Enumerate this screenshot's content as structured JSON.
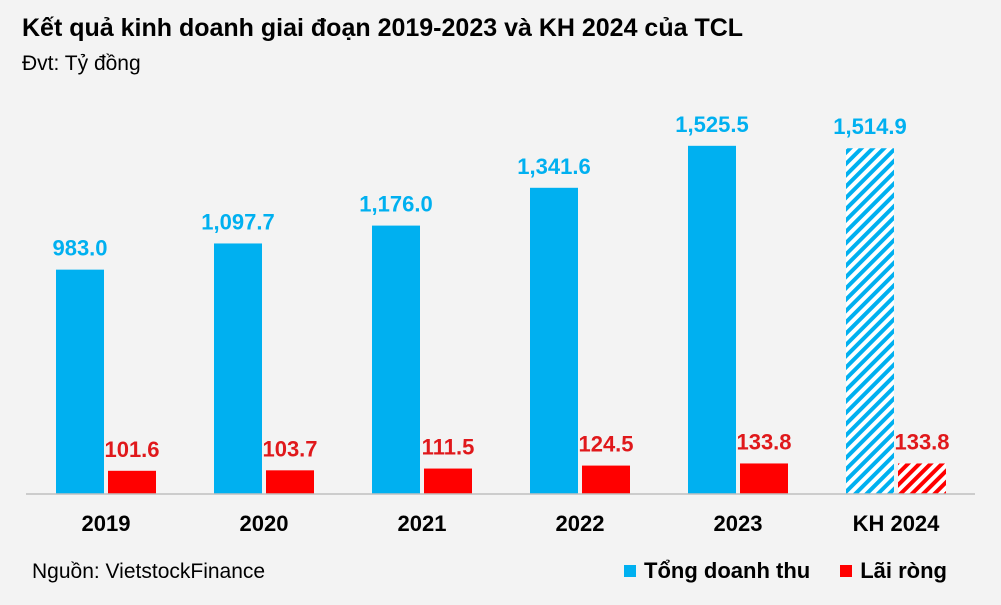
{
  "header": {
    "title": "Kết quả kinh doanh giai đoạn 2019-2023 và KH 2024 của TCL",
    "subtitle": "Đvt: Tỷ đồng"
  },
  "footer": {
    "source": "Nguồn: VietstockFinance"
  },
  "colors": {
    "revenue": "#00b0f0",
    "profit": "#ff0000",
    "revenue_label": "#00b0f0",
    "profit_label": "#e0181b",
    "axis": "#bfbfbf",
    "background": "#f3f3f3"
  },
  "chart_data": {
    "type": "bar",
    "title": "Kết quả kinh doanh giai đoạn 2019-2023 và KH 2024 của TCL",
    "subtitle": "Đvt: Tỷ đồng",
    "categories": [
      "2019",
      "2020",
      "2021",
      "2022",
      "2023",
      "KH 2024"
    ],
    "series": [
      {
        "name": "Tổng doanh thu",
        "values": [
          983.0,
          1097.7,
          1176.0,
          1341.6,
          1525.5,
          1514.9
        ],
        "labels": [
          "983.0",
          "1,097.7",
          "1,176.0",
          "1,341.6",
          "1,525.5",
          "1,514.9"
        ],
        "color": "#00b0f0"
      },
      {
        "name": "Lãi ròng",
        "values": [
          101.6,
          103.7,
          111.5,
          124.5,
          133.8,
          133.8
        ],
        "labels": [
          "101.6",
          "103.7",
          "111.5",
          "124.5",
          "133.8",
          "133.8"
        ],
        "color": "#ff0000"
      }
    ],
    "hatched_categories": [
      "KH 2024"
    ],
    "ylim": [
      0,
      1700
    ],
    "xlabel": "",
    "ylabel": "",
    "grid": false,
    "legend_position": "bottom-right",
    "source": "Nguồn: VietstockFinance"
  }
}
